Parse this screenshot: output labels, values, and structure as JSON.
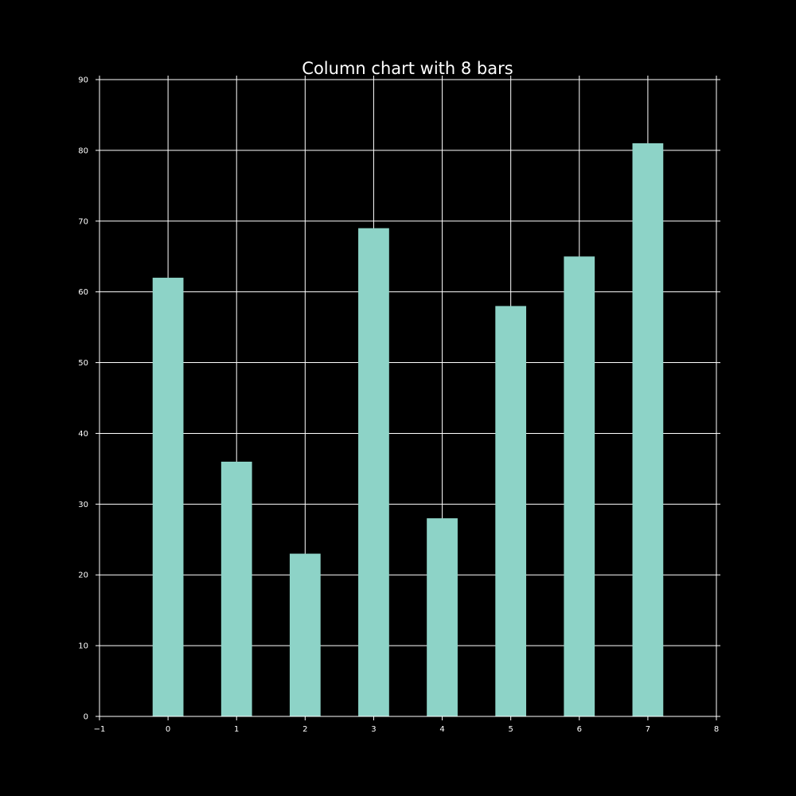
{
  "chart_data": {
    "type": "bar",
    "title": "Column chart with 8 bars",
    "xlabel": "",
    "ylabel": "",
    "x": [
      0,
      1,
      2,
      3,
      4,
      5,
      6,
      7
    ],
    "values": [
      62,
      36,
      23,
      69,
      28,
      58,
      65,
      81
    ],
    "xlim": [
      -1,
      8
    ],
    "ylim": [
      0,
      90
    ],
    "x_ticks": [
      -1,
      0,
      1,
      2,
      3,
      4,
      5,
      6,
      7,
      8
    ],
    "y_ticks": [
      0,
      10,
      20,
      30,
      40,
      50,
      60,
      70,
      80,
      90
    ],
    "grid": true,
    "bar_color": "#8dd3c7",
    "background_color": "#000000",
    "axis_color": "#ffffff"
  }
}
